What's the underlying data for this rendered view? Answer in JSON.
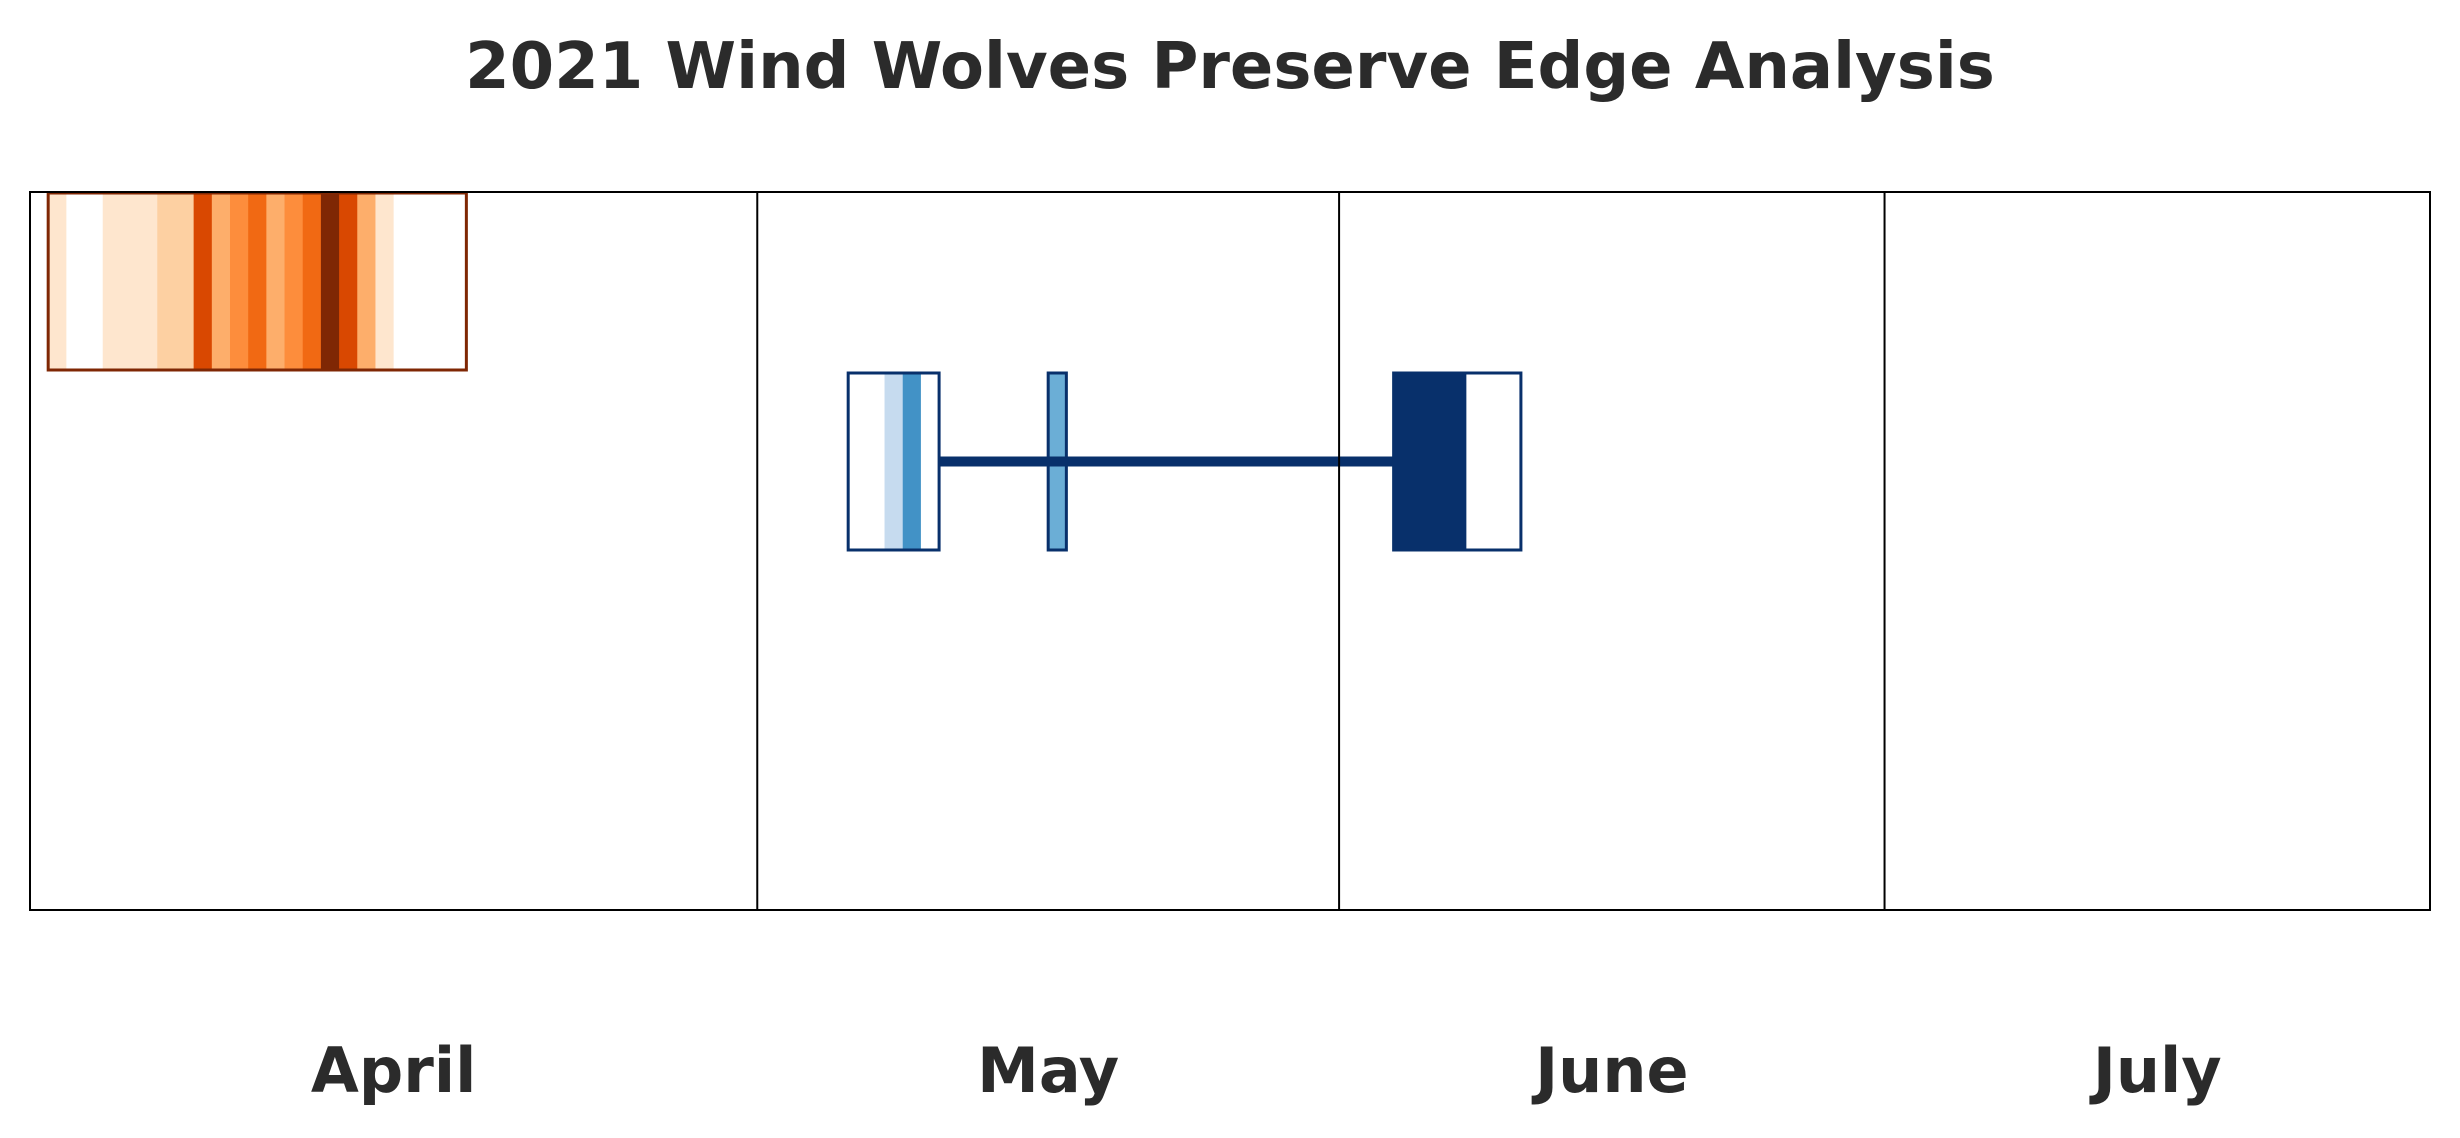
{
  "chart_data": {
    "type": "heatmap",
    "title": "2021 Wind Wolves Preserve Edge Analysis",
    "xlabel": "",
    "ylabel": "",
    "x_axis": "date",
    "xlim": [
      "2021-03-21",
      "2021-07-31"
    ],
    "grid": false,
    "month_labels": [
      {
        "label": "April",
        "start": "2021-03-21",
        "end": "2021-04-30"
      },
      {
        "label": "May",
        "start": "2021-04-30",
        "end": "2021-06-01"
      },
      {
        "label": "June",
        "start": "2021-06-01",
        "end": "2021-07-01"
      },
      {
        "label": "July",
        "start": "2021-07-01",
        "end": "2021-07-31"
      }
    ],
    "series": [
      {
        "row": 1,
        "border_color": "#7f2704",
        "boxes": [
          {
            "start": "2021-03-22",
            "end": "2021-04-14",
            "cells": [
              {
                "start": "2021-03-22",
                "end": "2021-03-23",
                "color": "#fee6ce"
              },
              {
                "start": "2021-03-23",
                "end": "2021-03-25",
                "color": "#ffffff"
              },
              {
                "start": "2021-03-25",
                "end": "2021-03-28",
                "color": "#fee6ce"
              },
              {
                "start": "2021-03-28",
                "end": "2021-03-30",
                "color": "#fdd0a2"
              },
              {
                "start": "2021-03-30",
                "end": "2021-03-31",
                "color": "#d94801"
              },
              {
                "start": "2021-03-31",
                "end": "2021-04-01",
                "color": "#fdae6b"
              },
              {
                "start": "2021-04-01",
                "end": "2021-04-02",
                "color": "#fd8d3c"
              },
              {
                "start": "2021-04-02",
                "end": "2021-04-03",
                "color": "#f16913"
              },
              {
                "start": "2021-04-03",
                "end": "2021-04-04",
                "color": "#fdae6b"
              },
              {
                "start": "2021-04-04",
                "end": "2021-04-05",
                "color": "#fd8d3c"
              },
              {
                "start": "2021-04-05",
                "end": "2021-04-06",
                "color": "#f16913"
              },
              {
                "start": "2021-04-06",
                "end": "2021-04-07",
                "color": "#7f2704"
              },
              {
                "start": "2021-04-07",
                "end": "2021-04-08",
                "color": "#d94801"
              },
              {
                "start": "2021-04-08",
                "end": "2021-04-09",
                "color": "#fdae6b"
              },
              {
                "start": "2021-04-09",
                "end": "2021-04-10",
                "color": "#fee6ce"
              },
              {
                "start": "2021-04-10",
                "end": "2021-04-14",
                "color": "#ffffff"
              }
            ]
          }
        ]
      },
      {
        "row": 2,
        "border_color": "#08306b",
        "connector_color": "#08306b",
        "connector": {
          "start": "2021-05-10",
          "end": "2021-06-04"
        },
        "boxes": [
          {
            "start": "2021-05-05",
            "end": "2021-05-10",
            "cells": [
              {
                "start": "2021-05-05",
                "end": "2021-05-07",
                "color": "#ffffff"
              },
              {
                "start": "2021-05-07",
                "end": "2021-05-08",
                "color": "#c6dbef"
              },
              {
                "start": "2021-05-08",
                "end": "2021-05-09",
                "color": "#4292c6"
              },
              {
                "start": "2021-05-09",
                "end": "2021-05-10",
                "color": "#ffffff"
              }
            ]
          },
          {
            "start": "2021-05-16",
            "end": "2021-05-17",
            "cells": [
              {
                "start": "2021-05-16",
                "end": "2021-05-17",
                "color": "#6baed6"
              }
            ]
          },
          {
            "start": "2021-06-04",
            "end": "2021-06-11",
            "cells": [
              {
                "start": "2021-06-04",
                "end": "2021-06-08",
                "color": "#08306b"
              },
              {
                "start": "2021-06-08",
                "end": "2021-06-11",
                "color": "#ffffff"
              }
            ]
          }
        ]
      }
    ]
  }
}
